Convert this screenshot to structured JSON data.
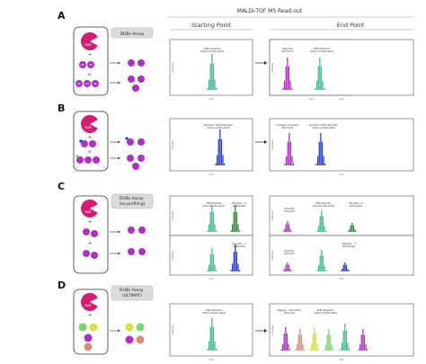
{
  "header": {
    "title": "MALDI-TOF MS Read-out",
    "starting": "Starting Point",
    "end": "End Point"
  },
  "axis": {
    "y": "Intensity",
    "x": "m/z"
  },
  "colors": {
    "enzyme": "#d81b72",
    "ub": "#b12fc7",
    "internal_standard": "#3cc18a",
    "product_blue": "#2b3fcf",
    "substrate_green": "#2f8a3a",
    "yellow_ub": "#d8e23a",
    "lightgreen_ub": "#7ad96c",
    "salmon_ub": "#d98b7a",
    "panel_line": "#222222",
    "button_fill": "#dcdcdc"
  },
  "panels": {
    "A": {
      "letter": "A",
      "assay": "DUBs Assay",
      "enzyme": "DUB",
      "or": "or",
      "ub": "Ub",
      "start_peak": "15N-Ubiquitin\n(Internal Standard)",
      "end_peak1": "Ubiquitin\n(Product)",
      "end_peak2": "15N-Ubiquitin\n(Internal Standard)"
    },
    "B": {
      "letter": "B",
      "enzyme": "DUB",
      "or": "or",
      "start_peak": "phospho-15N-Ubiquitin\n(Internal Standard)",
      "end_peak1": "phospho-Ubiquitin\n(Product)",
      "end_peak2": "phospho-15N-Ubiquitin\n(Internal Standard)"
    },
    "C": {
      "letter": "C",
      "assay": "DUBs Assay\n(ex profiling)",
      "enzyme": "DUB",
      "ub": "Ub",
      "start_top1": "15N-Ubiquitin\n(Internal Standard)",
      "start_top2": "Ubiquitin - K\n(Substrate)",
      "start_bot": "Ubiquitin - T\n(Substrate)",
      "end_top1": "Ubiquitin\n(Product)",
      "end_top2": "15N-Ubiquitin\n(Internal Standard)",
      "end_top3": "Ubiquitin - K\n(Substrate)",
      "end_bot1": "Ubiquitin\n(Product)",
      "end_bot2": "Ubiquitin - T\n(Substrate)"
    },
    "D": {
      "letter": "D",
      "assay": "DUBs Assay\n(ULTIMAT)",
      "enzyme": "DUB",
      "ub": "Ub",
      "start_peak": "15N-Ubiquitin\n(Internal Standard)",
      "end_peak1": "Tagged - Ubiquitins\n(Product)",
      "end_peak2": "15N-Ubiquitin\n(Internal Standard)"
    }
  }
}
